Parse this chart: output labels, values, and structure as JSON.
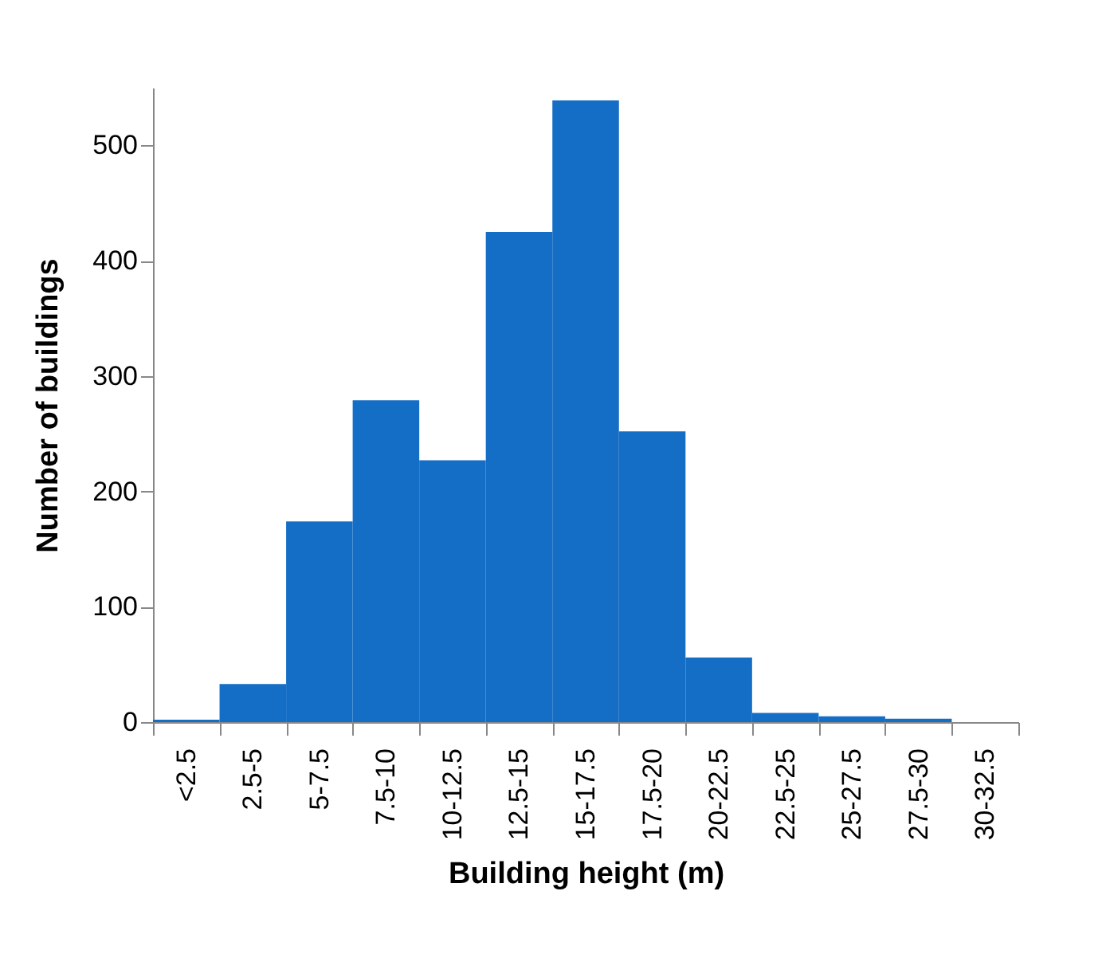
{
  "chart_data": {
    "type": "bar",
    "xlabel": "Building height (m)",
    "ylabel": "Number of buildings",
    "categories": [
      "<2.5",
      "2.5-5",
      "5-7.5",
      "7.5-10",
      "10-12.5",
      "12.5-15",
      "15-17.5",
      "17.5-20",
      "20-22.5",
      "22.5-25",
      "25-27.5",
      "27.5-30",
      "30-32.5"
    ],
    "values": [
      2,
      33,
      174,
      279,
      227,
      425,
      539,
      252,
      56,
      8,
      5,
      3,
      0
    ],
    "color": "#156ec6",
    "ylim": [
      0,
      550
    ],
    "yticks": [
      0,
      100,
      200,
      300,
      400,
      500
    ],
    "grid": false
  }
}
